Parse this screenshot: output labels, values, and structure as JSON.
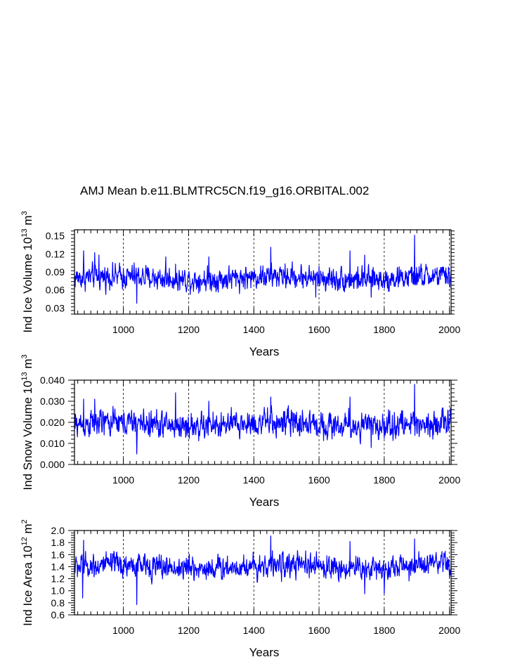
{
  "figure_title": "AMJ Mean b.e11.BLMTRC5CN.f19_g16.ORBITAL.002",
  "colors": {
    "series": "#0000ff",
    "axis": "#000000",
    "grid": "#000000",
    "background": "#ffffff"
  },
  "chart_data": [
    {
      "type": "line",
      "title": "AMJ Mean b.e11.BLMTRC5CN.f19_g16.ORBITAL.002",
      "xlabel": "Years",
      "ylabel_main": "Ind Ice Volume 10",
      "ylabel_exp": "13",
      "ylabel_unit": " m",
      "ylabel_unit_exp": "3",
      "xlim": [
        850,
        2005
      ],
      "ylim": [
        0.02,
        0.16
      ],
      "xticks": [
        1000,
        1200,
        1400,
        1600,
        1800,
        2000
      ],
      "xtick_labels": [
        "1000",
        "1200",
        "1400",
        "1600",
        "1800",
        "2000"
      ],
      "yticks": [
        0.03,
        0.06,
        0.09,
        0.12,
        0.15
      ],
      "ytick_labels": [
        "0.03",
        "0.06",
        "0.09",
        "0.12",
        "0.15"
      ],
      "vgrid_dashed": [
        1000,
        1200,
        1400,
        1600,
        1800,
        2000
      ],
      "series": [
        {
          "name": "Ind Ice Volume",
          "mean": 0.08,
          "amplitude": 0.014,
          "peaks": [
            [
              878,
              0.125
            ],
            [
              912,
              0.122
            ],
            [
              925,
              0.118
            ],
            [
              1041,
              0.038
            ],
            [
              1130,
              0.115
            ],
            [
              1262,
              0.115
            ],
            [
              1452,
              0.131
            ],
            [
              1590,
              0.048
            ],
            [
              1695,
              0.125
            ],
            [
              1740,
              0.118
            ],
            [
              1760,
              0.048
            ],
            [
              1893,
              0.151
            ]
          ]
        }
      ]
    },
    {
      "type": "line",
      "xlabel": "Years",
      "ylabel_main": "Ind Snow Volume 10",
      "ylabel_exp": "13",
      "ylabel_unit": " m",
      "ylabel_unit_exp": "3",
      "xlim": [
        850,
        2005
      ],
      "ylim": [
        0.0,
        0.04
      ],
      "xticks": [
        1000,
        1200,
        1400,
        1600,
        1800,
        2000
      ],
      "xtick_labels": [
        "1000",
        "1200",
        "1400",
        "1600",
        "1800",
        "2000"
      ],
      "yticks": [
        0.0,
        0.01,
        0.02,
        0.03,
        0.04
      ],
      "ytick_labels": [
        "0.000",
        "0.010",
        "0.020",
        "0.030",
        "0.040"
      ],
      "vgrid_dashed": [
        1000,
        1200,
        1400,
        1600,
        1800,
        2000
      ],
      "series": [
        {
          "name": "Ind Snow Volume",
          "mean": 0.019,
          "amplitude": 0.0045,
          "peaks": [
            [
              878,
              0.031
            ],
            [
              912,
              0.031
            ],
            [
              1041,
              0.005
            ],
            [
              1160,
              0.034
            ],
            [
              1262,
              0.03
            ],
            [
              1452,
              0.032
            ],
            [
              1695,
              0.032
            ],
            [
              1760,
              0.008
            ],
            [
              1893,
              0.038
            ]
          ]
        }
      ]
    },
    {
      "type": "line",
      "xlabel": "Years",
      "ylabel_main": "Ind Ice Area 10",
      "ylabel_exp": "12",
      "ylabel_unit": " m",
      "ylabel_unit_exp": "2",
      "xlim": [
        850,
        2005
      ],
      "ylim": [
        0.6,
        2.0
      ],
      "xticks": [
        1000,
        1200,
        1400,
        1600,
        1800,
        2000
      ],
      "xtick_labels": [
        "1000",
        "1200",
        "1400",
        "1600",
        "1800",
        "2000"
      ],
      "yticks": [
        0.6,
        0.8,
        1.0,
        1.2,
        1.4,
        1.6,
        1.8,
        2.0
      ],
      "ytick_labels": [
        "0.6",
        "0.8",
        "1.0",
        "1.2",
        "1.4",
        "1.6",
        "1.8",
        "2.0"
      ],
      "vgrid_dashed": [
        1000,
        1200,
        1400,
        1600,
        1800,
        2000
      ],
      "series": [
        {
          "name": "Ind Ice Area",
          "mean": 1.4,
          "amplitude": 0.14,
          "peaks": [
            [
              878,
              1.84
            ],
            [
              875,
              0.88
            ],
            [
              1041,
              0.77
            ],
            [
              1452,
              1.91
            ],
            [
              1695,
              1.82
            ],
            [
              1740,
              0.95
            ],
            [
              1800,
              0.95
            ],
            [
              1893,
              1.86
            ]
          ]
        }
      ]
    }
  ]
}
